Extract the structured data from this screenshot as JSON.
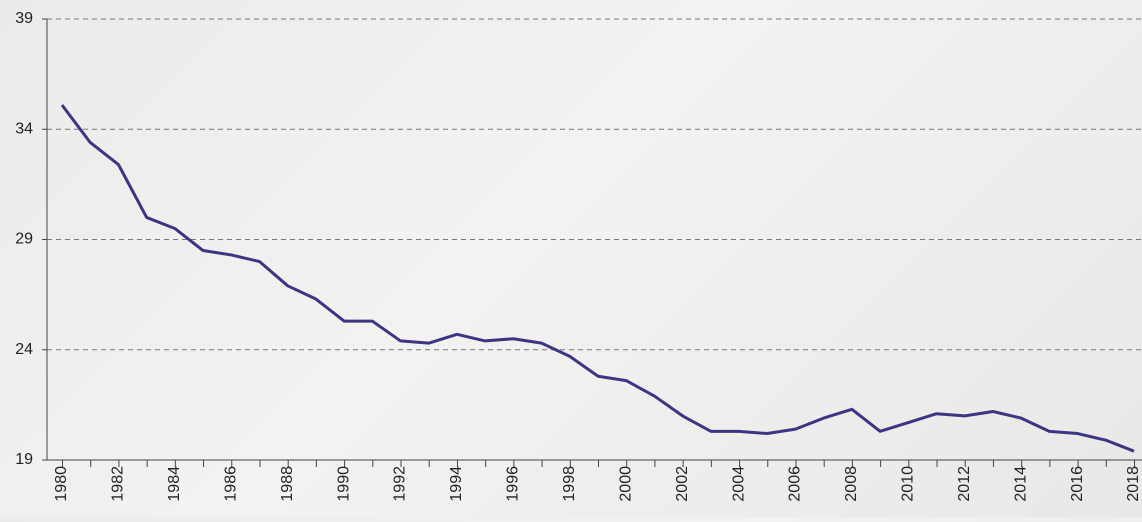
{
  "chart_data": {
    "type": "line",
    "categories": [
      "1980",
      null,
      "1982",
      null,
      "1984",
      null,
      "1986",
      null,
      "1988",
      null,
      "1990",
      null,
      "1992",
      null,
      "1994",
      null,
      "1996",
      null,
      "1998",
      null,
      "2000",
      null,
      "2002",
      null,
      "2004",
      null,
      "2006",
      null,
      "2008",
      null,
      "2010",
      null,
      "2012",
      null,
      "2014",
      null,
      "2016",
      null,
      "2018"
    ],
    "values": [
      35.1,
      33.4,
      32.4,
      30.0,
      29.5,
      28.5,
      28.3,
      28.0,
      26.9,
      26.3,
      25.3,
      25.3,
      24.4,
      24.3,
      24.7,
      24.4,
      24.5,
      24.3,
      23.7,
      22.8,
      22.6,
      21.9,
      21.0,
      20.3,
      20.3,
      20.2,
      20.4,
      20.9,
      21.3,
      20.3,
      20.7,
      21.1,
      21.0,
      21.2,
      20.9,
      20.3,
      20.2,
      19.9,
      19.4
    ],
    "color": "#3b3683",
    "ylim": [
      19,
      39
    ],
    "yticks": [
      19,
      24,
      29,
      34,
      39
    ],
    "grid": true
  }
}
